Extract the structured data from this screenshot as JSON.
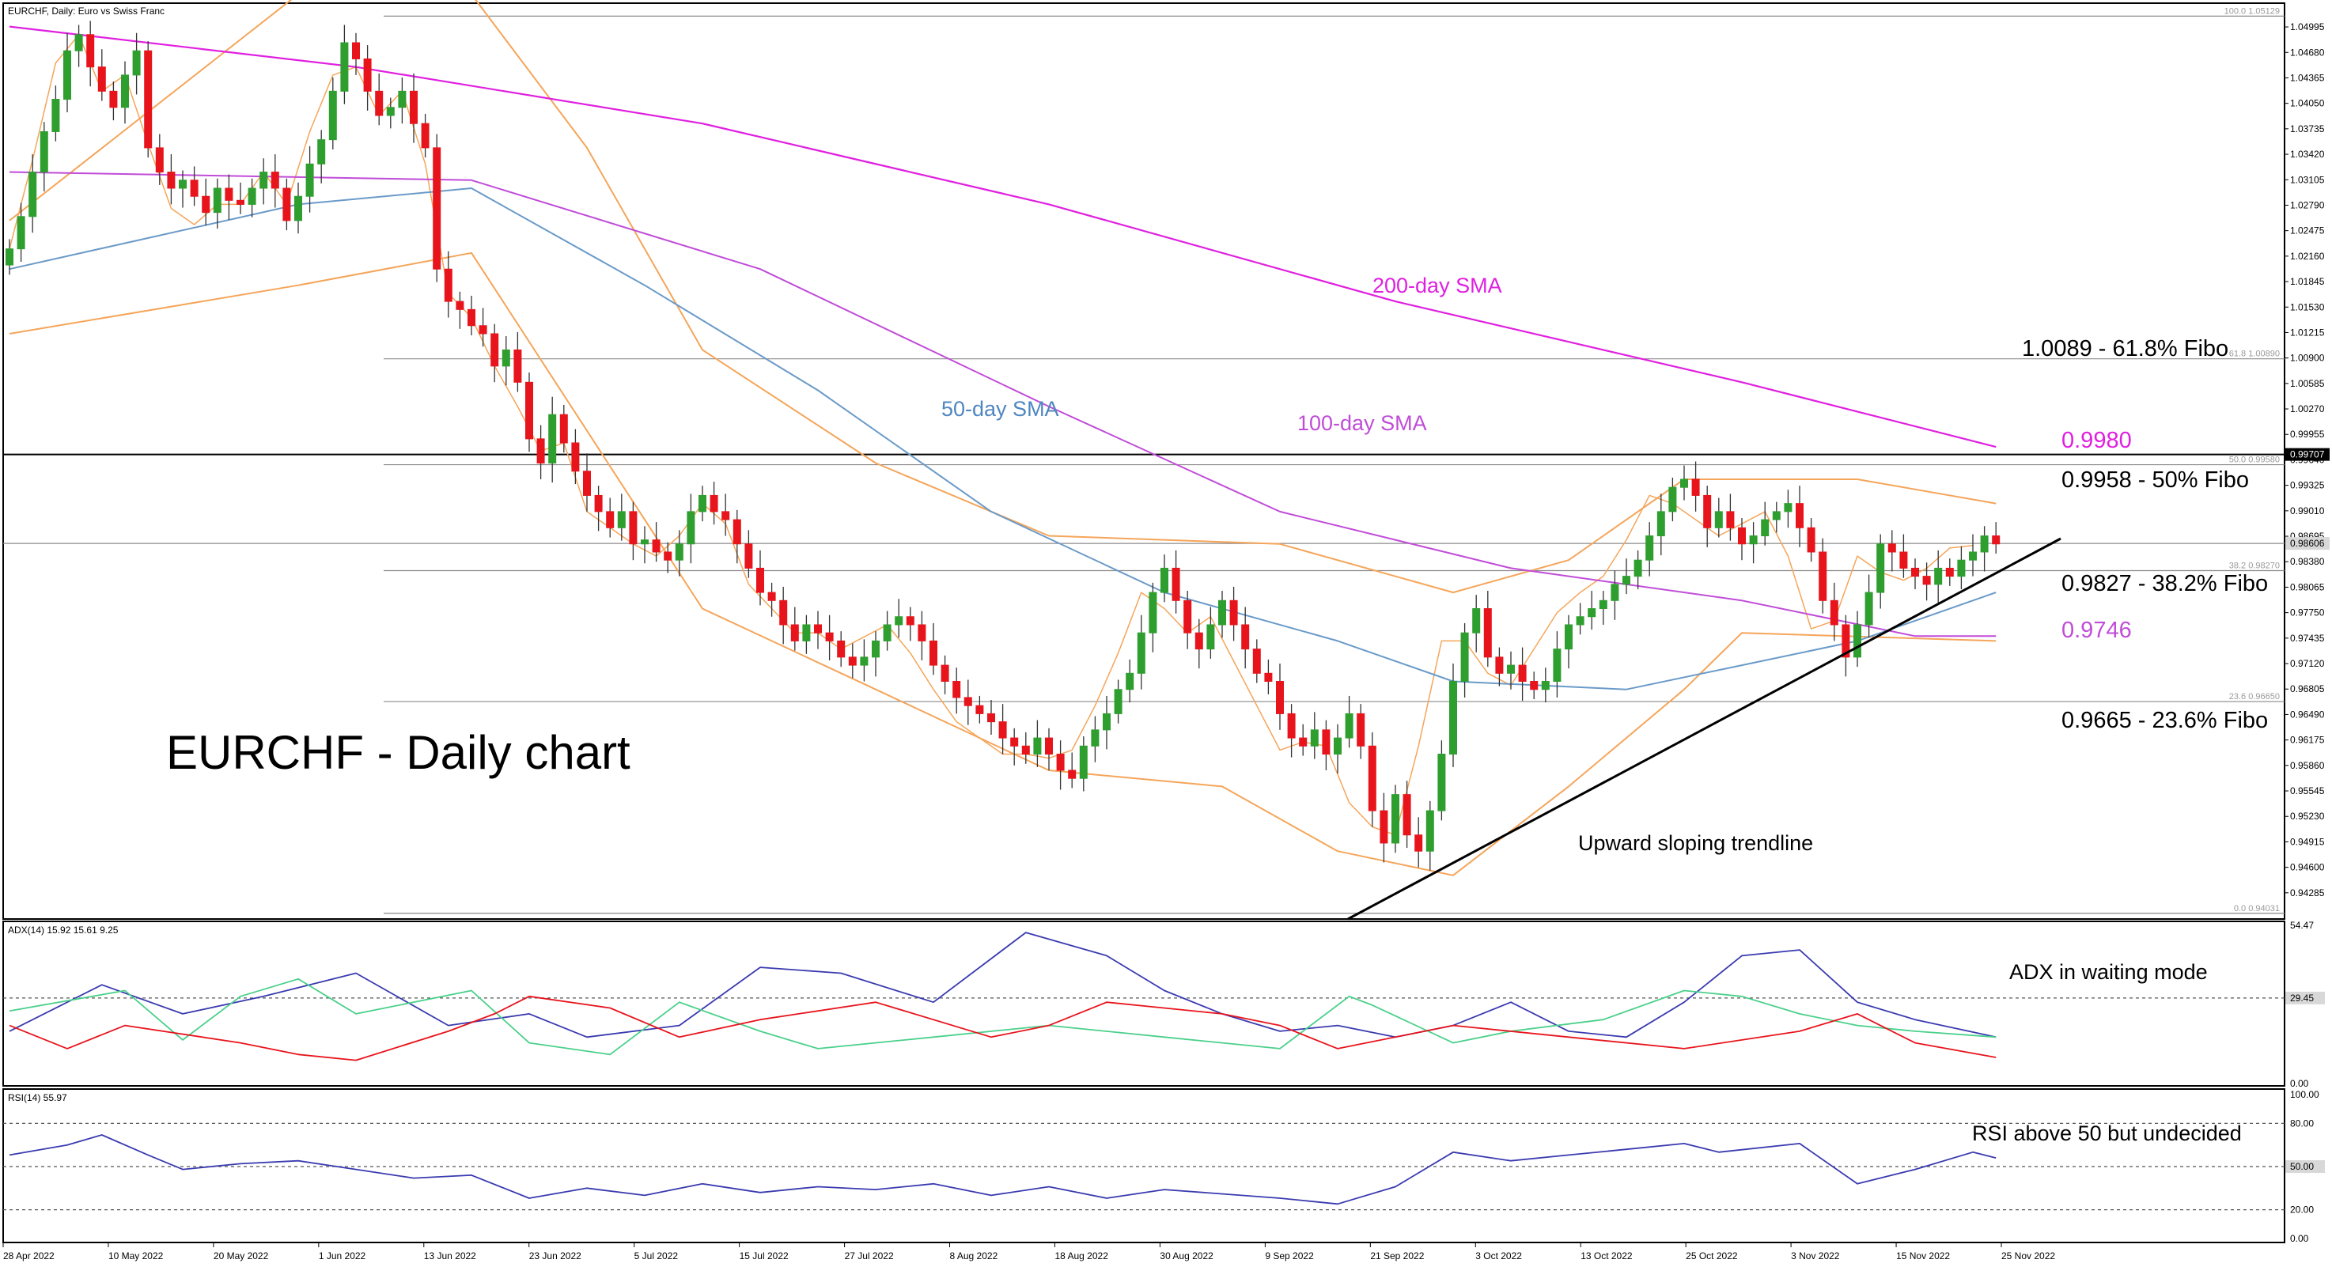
{
  "chart_data": {
    "type": "candlestick",
    "header": {
      "price": "EURCHF, Daily:  Euro vs Swiss Franc",
      "adx": "ADX(14) 15.92 15.61 9.25",
      "rsi": "RSI(14) 55.97"
    },
    "annotations": {
      "title": "EURCHF - Daily chart",
      "sma200": "200-day SMA",
      "sma50": "50-day SMA",
      "sma100": "100-day SMA",
      "fibo618": "1.0089 - 61.8% Fibo",
      "level9980": "0.9980",
      "fibo50": "0.9958 - 50% Fibo",
      "fibo382": "0.9827 - 38.2% Fibo",
      "level9746": "0.9746",
      "fibo236": "0.9665 - 23.6% Fibo",
      "trendline": "Upward sloping trendline",
      "adx_note": "ADX in waiting mode",
      "rsi_note": "RSI above 50 but undecided"
    },
    "fib_levels": [
      {
        "label": "100.0 1.05129",
        "value": 1.05129
      },
      {
        "label": "61.8 1.00890",
        "value": 1.0089
      },
      {
        "label": "50.0 0.99580",
        "value": 0.9958
      },
      {
        "label": "38.2 0.98270",
        "value": 0.9827
      },
      {
        "label": "23.6 0.96650",
        "value": 0.9665
      },
      {
        "label": "0.0 0.94031",
        "value": 0.94031
      }
    ],
    "price_axis": {
      "range": [
        0.9398,
        1.0525
      ],
      "ticks": [
        "1.04995",
        "1.04680",
        "1.04365",
        "1.04050",
        "1.03735",
        "1.03420",
        "1.03105",
        "1.02790",
        "1.02475",
        "1.02160",
        "1.01845",
        "1.01530",
        "1.01215",
        "1.00900",
        "1.00585",
        "1.00270",
        "0.99955",
        "0.99640",
        "0.99325",
        "0.99010",
        "0.98695",
        "0.98380",
        "0.98065",
        "0.97750",
        "0.97435",
        "0.97120",
        "0.96805",
        "0.96490",
        "0.96175",
        "0.95860",
        "0.95545",
        "0.95230",
        "0.94915",
        "0.94600",
        "0.94285"
      ],
      "current_price": "0.98606",
      "resistance_price": "0.99707"
    },
    "adx_axis": {
      "range": [
        0,
        54.47
      ],
      "ticks": [
        "54.47",
        "29.45",
        "0.00"
      ],
      "level": 29.45
    },
    "rsi_axis": {
      "range": [
        0,
        100
      ],
      "ticks": [
        "100.00",
        "80.00",
        "50.00",
        "20.00",
        "0.00"
      ],
      "levels": [
        80,
        50,
        20
      ]
    },
    "x_labels": [
      "28 Apr 2022",
      "10 May 2022",
      "20 May 2022",
      "1 Jun 2022",
      "13 Jun 2022",
      "23 Jun 2022",
      "5 Jul 2022",
      "15 Jul 2022",
      "27 Jul 2022",
      "8 Aug 2022",
      "18 Aug 2022",
      "30 Aug 2022",
      "9 Sep 2022",
      "21 Sep 2022",
      "3 Oct 2022",
      "13 Oct 2022",
      "25 Oct 2022",
      "3 Nov 2022",
      "15 Nov 2022",
      "25 Nov 2022"
    ],
    "series": [
      {
        "name": "EURCHF",
        "close": [
          1.0225,
          1.0265,
          1.032,
          1.037,
          1.041,
          1.047,
          1.049,
          1.045,
          1.042,
          1.04,
          1.044,
          1.047,
          1.035,
          1.032,
          1.03,
          1.031,
          1.029,
          1.027,
          1.03,
          1.0285,
          1.028,
          1.03,
          1.032,
          1.03,
          1.026,
          1.029,
          1.033,
          1.036,
          1.042,
          1.048,
          1.046,
          1.042,
          1.039,
          1.04,
          1.042,
          1.038,
          1.035,
          1.02,
          1.016,
          1.015,
          1.013,
          1.012,
          1.008,
          1.01,
          1.006,
          0.999,
          0.996,
          1.002,
          0.9985,
          0.995,
          0.992,
          0.99,
          0.988,
          0.99,
          0.986,
          0.9865,
          0.985,
          0.984,
          0.986,
          0.99,
          0.992,
          0.99,
          0.989,
          0.986,
          0.983,
          0.98,
          0.979,
          0.976,
          0.974,
          0.976,
          0.975,
          0.974,
          0.972,
          0.971,
          0.972,
          0.974,
          0.976,
          0.977,
          0.976,
          0.974,
          0.971,
          0.969,
          0.967,
          0.966,
          0.965,
          0.964,
          0.962,
          0.961,
          0.96,
          0.962,
          0.96,
          0.958,
          0.957,
          0.961,
          0.963,
          0.965,
          0.968,
          0.97,
          0.975,
          0.98,
          0.983,
          0.979,
          0.975,
          0.973,
          0.976,
          0.979,
          0.976,
          0.973,
          0.97,
          0.969,
          0.965,
          0.962,
          0.961,
          0.963,
          0.96,
          0.962,
          0.965,
          0.961,
          0.953,
          0.949,
          0.955,
          0.95,
          0.948,
          0.953,
          0.96,
          0.969,
          0.975,
          0.978,
          0.972,
          0.97,
          0.971,
          0.969,
          0.968,
          0.969,
          0.973,
          0.976,
          0.977,
          0.978,
          0.979,
          0.981,
          0.982,
          0.984,
          0.987,
          0.99,
          0.993,
          0.994,
          0.992,
          0.988,
          0.99,
          0.988,
          0.986,
          0.987,
          0.989,
          0.99,
          0.991,
          0.988,
          0.985,
          0.979,
          0.976,
          0.972,
          0.976,
          0.98,
          0.986,
          0.985,
          0.983,
          0.982,
          0.981,
          0.983,
          0.982,
          0.984,
          0.985,
          0.987,
          0.986
        ],
        "trend": [
          1.0225,
          1.0275,
          1.0335,
          1.0395,
          1.0455,
          1.049,
          1.049,
          1.0455,
          1.042,
          1.04,
          1.044,
          1.047,
          1.0355,
          1.03,
          1.0275,
          1.0275,
          1.0255,
          1.026,
          1.028,
          1.0275,
          1.028,
          1.0295,
          1.032,
          1.03,
          1.028,
          1.032,
          1.037,
          1.041,
          1.044,
          1.048,
          1.045,
          1.0405,
          1.039,
          1.041,
          1.042,
          1.036,
          1.033,
          1.02,
          1.017,
          1.015,
          1.014,
          1.011,
          1.008,
          1.008,
          1.003,
          0.998,
          0.9975,
          1.0,
          0.9985,
          0.9945,
          0.99,
          0.989,
          0.988,
          0.989,
          0.986,
          0.9855,
          0.9845,
          0.984,
          0.987,
          0.9905,
          0.991,
          0.9895,
          0.9885,
          0.9845,
          0.981,
          0.979,
          0.978,
          0.976,
          0.975,
          0.976,
          0.975,
          0.974,
          0.973,
          0.9725,
          0.9745,
          0.976,
          0.976,
          0.9745,
          0.9725,
          0.97,
          0.968,
          0.966,
          0.964,
          0.963,
          0.962,
          0.961,
          0.96,
          0.9595,
          0.96,
          0.961,
          0.9595,
          0.959,
          0.9605,
          0.963,
          0.966,
          0.969,
          0.9725,
          0.977,
          0.98,
          0.9795,
          0.978,
          0.976,
          0.975,
          0.976,
          0.977,
          0.9745,
          0.9715,
          0.969,
          0.966,
          0.9625,
          0.9605,
          0.961,
          0.9615,
          0.962,
          0.961,
          0.958,
          0.954,
          0.951,
          0.951,
          0.9495,
          0.95,
          0.954,
          0.961,
          0.968,
          0.974,
          0.976,
          0.974,
          0.972,
          0.97,
          0.969,
          0.9685,
          0.97,
          0.973,
          0.976,
          0.9775,
          0.9785,
          0.98,
          0.981,
          0.982,
          0.984,
          0.9865,
          0.9895,
          0.992,
          0.993,
          0.991,
          0.9895,
          0.989,
          0.9875,
          0.987,
          0.9875,
          0.9885,
          0.9895,
          0.99,
          0.988,
          0.9845,
          0.979,
          0.9755,
          0.9735,
          0.9765,
          0.981,
          0.9845,
          0.984,
          0.9825,
          0.9815,
          0.9815,
          0.9825,
          0.983,
          0.9845,
          0.9855,
          0.986,
          0.9858
        ]
      },
      {
        "name": "200-day SMA",
        "points": [
          [
            0,
            1.05
          ],
          [
            30,
            1.045
          ],
          [
            60,
            1.038
          ],
          [
            90,
            1.028
          ],
          [
            120,
            1.016
          ],
          [
            150,
            1.006
          ],
          [
            172,
            0.998
          ]
        ]
      },
      {
        "name": "100-day SMA",
        "points": [
          [
            0,
            1.032
          ],
          [
            40,
            1.031
          ],
          [
            65,
            1.02
          ],
          [
            90,
            1.003
          ],
          [
            110,
            0.99
          ],
          [
            130,
            0.983
          ],
          [
            150,
            0.979
          ],
          [
            165,
            0.9746
          ],
          [
            172,
            0.9746
          ]
        ]
      },
      {
        "name": "50-day SMA",
        "points": [
          [
            0,
            1.02
          ],
          [
            25,
            1.028
          ],
          [
            40,
            1.03
          ],
          [
            55,
            1.018
          ],
          [
            70,
            1.005
          ],
          [
            85,
            0.99
          ],
          [
            100,
            0.98
          ],
          [
            115,
            0.974
          ],
          [
            125,
            0.969
          ],
          [
            140,
            0.968
          ],
          [
            150,
            0.971
          ],
          [
            160,
            0.974
          ],
          [
            172,
            0.98
          ]
        ]
      },
      {
        "name": "Upper Bollinger",
        "points": [
          [
            0,
            1.026
          ],
          [
            25,
            1.054
          ],
          [
            40,
            1.054
          ],
          [
            50,
            1.035
          ],
          [
            60,
            1.01
          ],
          [
            75,
            0.996
          ],
          [
            90,
            0.987
          ],
          [
            110,
            0.986
          ],
          [
            125,
            0.98
          ],
          [
            135,
            0.984
          ],
          [
            145,
            0.994
          ],
          [
            160,
            0.994
          ],
          [
            172,
            0.991
          ]
        ]
      },
      {
        "name": "Lower Bollinger",
        "points": [
          [
            0,
            1.012
          ],
          [
            25,
            1.018
          ],
          [
            40,
            1.022
          ],
          [
            50,
            1.0
          ],
          [
            60,
            0.978
          ],
          [
            75,
            0.968
          ],
          [
            90,
            0.958
          ],
          [
            105,
            0.956
          ],
          [
            115,
            0.948
          ],
          [
            125,
            0.945
          ],
          [
            135,
            0.956
          ],
          [
            145,
            0.968
          ],
          [
            150,
            0.975
          ],
          [
            172,
            0.974
          ]
        ]
      },
      {
        "name": "ADX",
        "points": [
          [
            0,
            18
          ],
          [
            8,
            34
          ],
          [
            15,
            24
          ],
          [
            22,
            30
          ],
          [
            30,
            38
          ],
          [
            38,
            20
          ],
          [
            45,
            24
          ],
          [
            50,
            16
          ],
          [
            58,
            20
          ],
          [
            65,
            40
          ],
          [
            72,
            38
          ],
          [
            80,
            28
          ],
          [
            88,
            52
          ],
          [
            95,
            44
          ],
          [
            100,
            32
          ],
          [
            105,
            24
          ],
          [
            110,
            18
          ],
          [
            115,
            20
          ],
          [
            120,
            16
          ],
          [
            125,
            20
          ],
          [
            130,
            28
          ],
          [
            135,
            18
          ],
          [
            140,
            16
          ],
          [
            145,
            28
          ],
          [
            150,
            44
          ],
          [
            155,
            46
          ],
          [
            160,
            28
          ],
          [
            165,
            22
          ],
          [
            172,
            16
          ]
        ]
      },
      {
        "name": "+DI",
        "points": [
          [
            0,
            25
          ],
          [
            10,
            32
          ],
          [
            15,
            15
          ],
          [
            20,
            30
          ],
          [
            25,
            36
          ],
          [
            30,
            24
          ],
          [
            40,
            32
          ],
          [
            45,
            14
          ],
          [
            52,
            10
          ],
          [
            58,
            28
          ],
          [
            65,
            18
          ],
          [
            70,
            12
          ],
          [
            80,
            16
          ],
          [
            90,
            20
          ],
          [
            100,
            16
          ],
          [
            110,
            12
          ],
          [
            116,
            30
          ],
          [
            118,
            27
          ],
          [
            125,
            14
          ],
          [
            130,
            18
          ],
          [
            138,
            22
          ],
          [
            145,
            32
          ],
          [
            150,
            30
          ],
          [
            155,
            24
          ],
          [
            160,
            20
          ],
          [
            165,
            18
          ],
          [
            172,
            16
          ]
        ]
      },
      {
        "name": "-DI",
        "points": [
          [
            0,
            20
          ],
          [
            5,
            12
          ],
          [
            10,
            20
          ],
          [
            20,
            14
          ],
          [
            25,
            10
          ],
          [
            30,
            8
          ],
          [
            38,
            18
          ],
          [
            42,
            24
          ],
          [
            45,
            30
          ],
          [
            52,
            26
          ],
          [
            58,
            16
          ],
          [
            65,
            22
          ],
          [
            75,
            28
          ],
          [
            85,
            16
          ],
          [
            90,
            20
          ],
          [
            95,
            28
          ],
          [
            105,
            24
          ],
          [
            110,
            20
          ],
          [
            115,
            12
          ],
          [
            125,
            20
          ],
          [
            135,
            16
          ],
          [
            145,
            12
          ],
          [
            155,
            18
          ],
          [
            160,
            24
          ],
          [
            165,
            14
          ],
          [
            172,
            9
          ]
        ]
      },
      {
        "name": "RSI",
        "points": [
          [
            0,
            58
          ],
          [
            5,
            65
          ],
          [
            8,
            72
          ],
          [
            12,
            58
          ],
          [
            15,
            48
          ],
          [
            20,
            52
          ],
          [
            25,
            54
          ],
          [
            30,
            48
          ],
          [
            35,
            42
          ],
          [
            40,
            44
          ],
          [
            45,
            28
          ],
          [
            50,
            35
          ],
          [
            55,
            30
          ],
          [
            60,
            38
          ],
          [
            65,
            32
          ],
          [
            70,
            36
          ],
          [
            75,
            34
          ],
          [
            80,
            38
          ],
          [
            85,
            30
          ],
          [
            90,
            36
          ],
          [
            95,
            28
          ],
          [
            100,
            34
          ],
          [
            110,
            28
          ],
          [
            115,
            24
          ],
          [
            120,
            36
          ],
          [
            125,
            60
          ],
          [
            130,
            54
          ],
          [
            135,
            58
          ],
          [
            140,
            62
          ],
          [
            145,
            66
          ],
          [
            148,
            60
          ],
          [
            155,
            66
          ],
          [
            160,
            38
          ],
          [
            165,
            48
          ],
          [
            170,
            60
          ],
          [
            172,
            56
          ]
        ]
      }
    ]
  }
}
